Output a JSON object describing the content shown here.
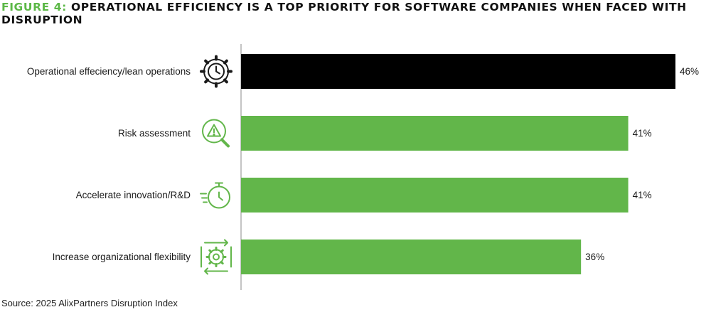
{
  "title": {
    "figure_label": "FIGURE 4:",
    "text": "OPERATIONAL EFFICIENCY IS A TOP PRIORITY FOR SOFTWARE COMPANIES WHEN FACED WITH DISRUPTION"
  },
  "source": "Source: 2025 AlixPartners Disruption Index",
  "colors": {
    "highlight": "#000000",
    "bar": "#62b64a",
    "icon": "#62b64a",
    "icon_dark": "#1a1a1a",
    "title_accent": "#5cb847"
  },
  "chart_data": {
    "type": "bar",
    "orientation": "horizontal",
    "categories": [
      "Operational effeciency/lean operations",
      "Risk assessment",
      "Accelerate innovation/R&D",
      "Increase organizational flexibility"
    ],
    "values": [
      46,
      41,
      41,
      36
    ],
    "value_labels": [
      "46%",
      "41%",
      "41%",
      "36%"
    ],
    "icons": [
      "gear-clock-icon",
      "risk-magnifier-icon",
      "stopwatch-icon",
      "flex-gear-icon"
    ],
    "highlighted_index": 0,
    "xlim": [
      0,
      46
    ],
    "grid": false,
    "legend": "none"
  }
}
